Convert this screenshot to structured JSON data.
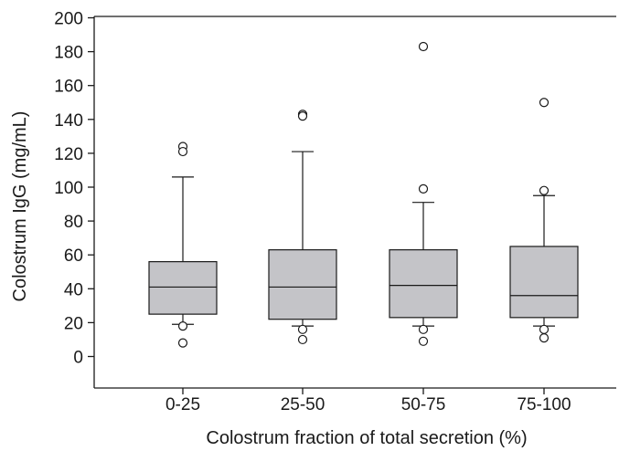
{
  "chart_data": {
    "type": "box",
    "title": "",
    "xlabel": "Colostrum fraction of total secretion (%)",
    "ylabel": "Colostrum IgG (mg/mL)",
    "ylim": [
      -20,
      200
    ],
    "yticks": [
      0,
      20,
      40,
      60,
      80,
      100,
      120,
      140,
      160,
      180,
      200
    ],
    "grid": false,
    "categories": [
      "0-25",
      "25-50",
      "50-75",
      "75-100"
    ],
    "boxes": [
      {
        "category": "0-25",
        "whisker_low": 19,
        "q1": 25,
        "median": 41,
        "q3": 56,
        "whisker_high": 106,
        "outliers": [
          124,
          121,
          18,
          8
        ]
      },
      {
        "category": "25-50",
        "whisker_low": 18,
        "q1": 22,
        "median": 41,
        "q3": 63,
        "whisker_high": 121,
        "outliers": [
          143,
          142,
          16,
          10
        ]
      },
      {
        "category": "50-75",
        "whisker_low": 18,
        "q1": 23,
        "median": 42,
        "q3": 63,
        "whisker_high": 91,
        "outliers": [
          183,
          99,
          16,
          9
        ]
      },
      {
        "category": "75-100",
        "whisker_low": 18,
        "q1": 23,
        "median": 36,
        "q3": 65,
        "whisker_high": 95,
        "outliers": [
          150,
          98,
          16,
          11
        ]
      }
    ]
  }
}
